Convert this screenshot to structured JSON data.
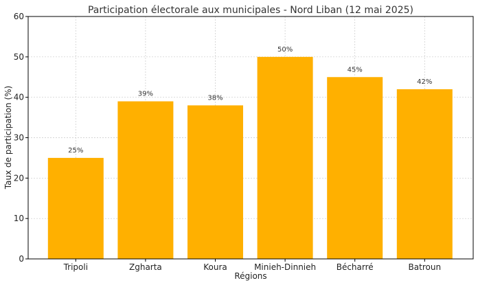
{
  "chart_data": {
    "type": "bar",
    "title": "Participation électorale aux municipales - Nord Liban (12 mai 2025)",
    "xlabel": "Régions",
    "ylabel": "Taux de participation (%)",
    "categories": [
      "Tripoli",
      "Zgharta",
      "Koura",
      "Minieh-Dinnieh",
      "Bécharré",
      "Batroun"
    ],
    "values": [
      25,
      39,
      38,
      50,
      45,
      42
    ],
    "data_labels": [
      "25%",
      "39%",
      "38%",
      "50%",
      "45%",
      "42%"
    ],
    "ylim": [
      0,
      60
    ],
    "yticks": [
      0,
      10,
      20,
      30,
      40,
      50,
      60
    ],
    "grid": true,
    "bar_color": "#FFB000"
  }
}
